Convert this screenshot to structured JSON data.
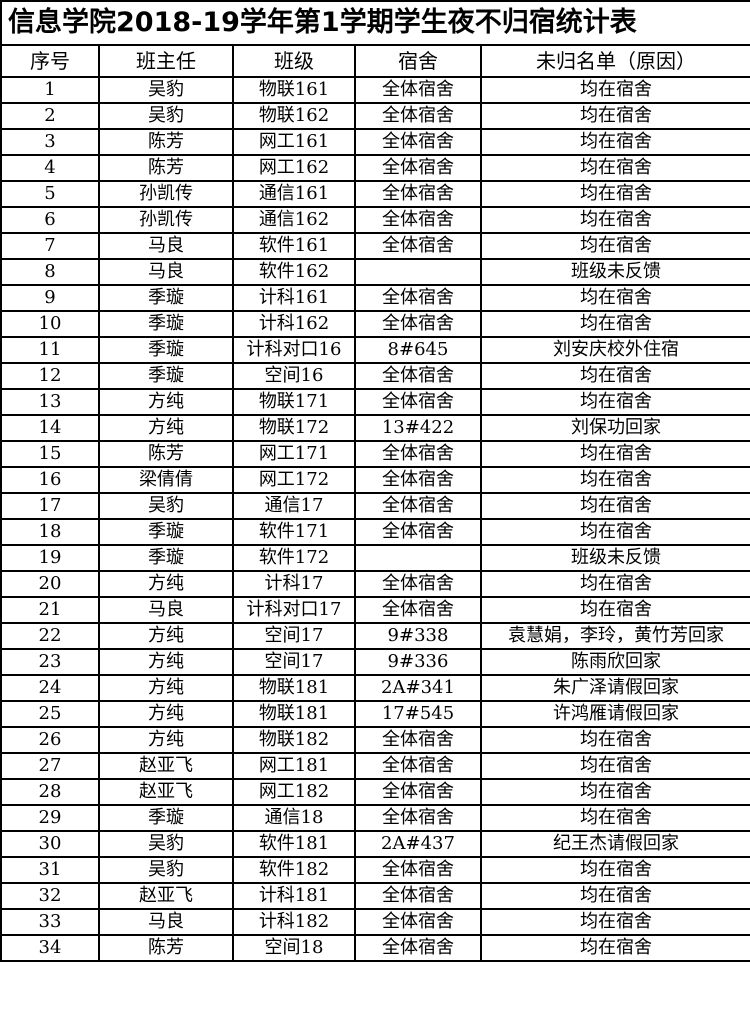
{
  "title": "信息学院2018-19学年第1学期学生夜不归宿统计表",
  "headers": [
    "序号",
    "班主任",
    "班级",
    "宿舍",
    "未归名单（原因）"
  ],
  "rows": [
    [
      "1",
      "吴豹",
      "物联161",
      "全体宿舍",
      "均在宿舍"
    ],
    [
      "2",
      "吴豹",
      "物联162",
      "全体宿舍",
      "均在宿舍"
    ],
    [
      "3",
      "陈芳",
      "网工161",
      "全体宿舍",
      "均在宿舍"
    ],
    [
      "4",
      "陈芳",
      "网工162",
      "全体宿舍",
      "均在宿舍"
    ],
    [
      "5",
      "孙凯传",
      "通信161",
      "全体宿舍",
      "均在宿舍"
    ],
    [
      "6",
      "孙凯传",
      "通信162",
      "全体宿舍",
      "均在宿舍"
    ],
    [
      "7",
      "马良",
      "软件161",
      "全体宿舍",
      "均在宿舍"
    ],
    [
      "8",
      "马良",
      "软件162",
      "",
      "班级未反馈"
    ],
    [
      "9",
      "季璇",
      "计科161",
      "全体宿舍",
      "均在宿舍"
    ],
    [
      "10",
      "季璇",
      "计科162",
      "全体宿舍",
      "均在宿舍"
    ],
    [
      "11",
      "季璇",
      "计科对口16",
      "8#645",
      "刘安庆校外住宿"
    ],
    [
      "12",
      "季璇",
      "空间16",
      "全体宿舍",
      "均在宿舍"
    ],
    [
      "13",
      "方纯",
      "物联171",
      "全体宿舍",
      "均在宿舍"
    ],
    [
      "14",
      "方纯",
      "物联172",
      "13#422",
      "刘保功回家"
    ],
    [
      "15",
      "陈芳",
      "网工171",
      "全体宿舍",
      "均在宿舍"
    ],
    [
      "16",
      "梁倩倩",
      "网工172",
      "全体宿舍",
      "均在宿舍"
    ],
    [
      "17",
      "吴豹",
      "通信17",
      "全体宿舍",
      "均在宿舍"
    ],
    [
      "18",
      "季璇",
      "软件171",
      "全体宿舍",
      "均在宿舍"
    ],
    [
      "19",
      "季璇",
      "软件172",
      "",
      "班级未反馈"
    ],
    [
      "20",
      "方纯",
      "计科17",
      "全体宿舍",
      "均在宿舍"
    ],
    [
      "21",
      "马良",
      "计科对口17",
      "全体宿舍",
      "均在宿舍"
    ],
    [
      "22",
      "方纯",
      "空间17",
      "9#338",
      "袁慧娟，李玲，黄竹芳回家"
    ],
    [
      "23",
      "方纯",
      "空间17",
      "9#336",
      "陈雨欣回家"
    ],
    [
      "24",
      "方纯",
      "物联181",
      "2A#341",
      "朱广泽请假回家"
    ],
    [
      "25",
      "方纯",
      "物联181",
      "17#545",
      "许鸿雁请假回家"
    ],
    [
      "26",
      "方纯",
      "物联182",
      "全体宿舍",
      "均在宿舍"
    ],
    [
      "27",
      "赵亚飞",
      "网工181",
      "全体宿舍",
      "均在宿舍"
    ],
    [
      "28",
      "赵亚飞",
      "网工182",
      "全体宿舍",
      "均在宿舍"
    ],
    [
      "29",
      "季璇",
      "通信18",
      "全体宿舍",
      "均在宿舍"
    ],
    [
      "30",
      "吴豹",
      "软件181",
      "2A#437",
      "纪王杰请假回家"
    ],
    [
      "31",
      "吴豹",
      "软件182",
      "全体宿舍",
      "均在宿舍"
    ],
    [
      "32",
      "赵亚飞",
      "计科181",
      "全体宿舍",
      "均在宿舍"
    ],
    [
      "33",
      "马良",
      "计科182",
      "全体宿舍",
      "均在宿舍"
    ],
    [
      "34",
      "陈芳",
      "空间18",
      "全体宿舍",
      "均在宿舍"
    ]
  ]
}
